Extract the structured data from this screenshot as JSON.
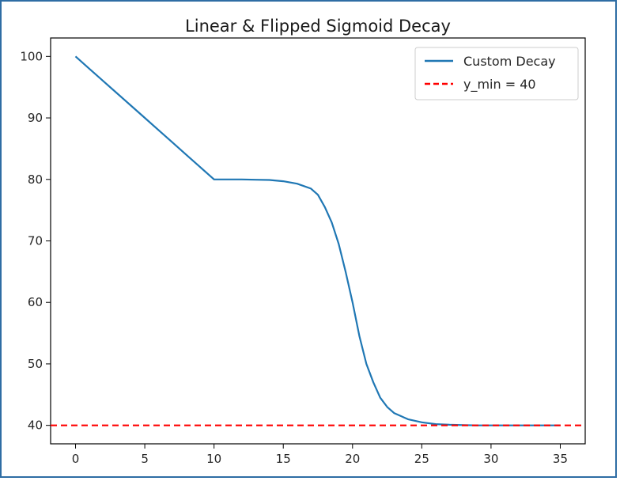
{
  "chart_data": {
    "type": "line",
    "title": "Linear & Flipped Sigmoid Decay",
    "xlabel": "",
    "ylabel": "",
    "xlim": [
      -1.8,
      36.8
    ],
    "ylim": [
      37,
      103
    ],
    "xticks": [
      0,
      5,
      10,
      15,
      20,
      25,
      30,
      35
    ],
    "yticks": [
      40,
      50,
      60,
      70,
      80,
      90,
      100
    ],
    "grid": false,
    "legend_position": "top-right",
    "series": [
      {
        "name": "Custom Decay",
        "color": "#1f77b4",
        "style": "solid",
        "x": [
          0,
          1,
          2,
          3,
          4,
          5,
          6,
          7,
          8,
          9,
          10,
          11,
          12,
          13,
          14,
          15,
          16,
          17,
          17.5,
          18,
          18.5,
          19,
          19.5,
          20,
          20.5,
          21,
          21.5,
          22,
          22.5,
          23,
          23.5,
          24,
          25,
          26,
          27,
          28,
          29,
          30,
          31,
          32,
          33,
          34,
          35
        ],
        "y": [
          100,
          98,
          96,
          94,
          92,
          90,
          88,
          86,
          84,
          82,
          80,
          80,
          80,
          79.95,
          79.9,
          79.7,
          79.3,
          78.5,
          77.5,
          75.5,
          73,
          69.5,
          65,
          60,
          54.5,
          50,
          47,
          44.5,
          43,
          42,
          41.5,
          41,
          40.5,
          40.2,
          40.1,
          40.05,
          40,
          40,
          40,
          40,
          40,
          40,
          40
        ]
      },
      {
        "name": "y_min = 40",
        "color": "#ff0000",
        "style": "dashed",
        "hline": 40
      }
    ]
  }
}
